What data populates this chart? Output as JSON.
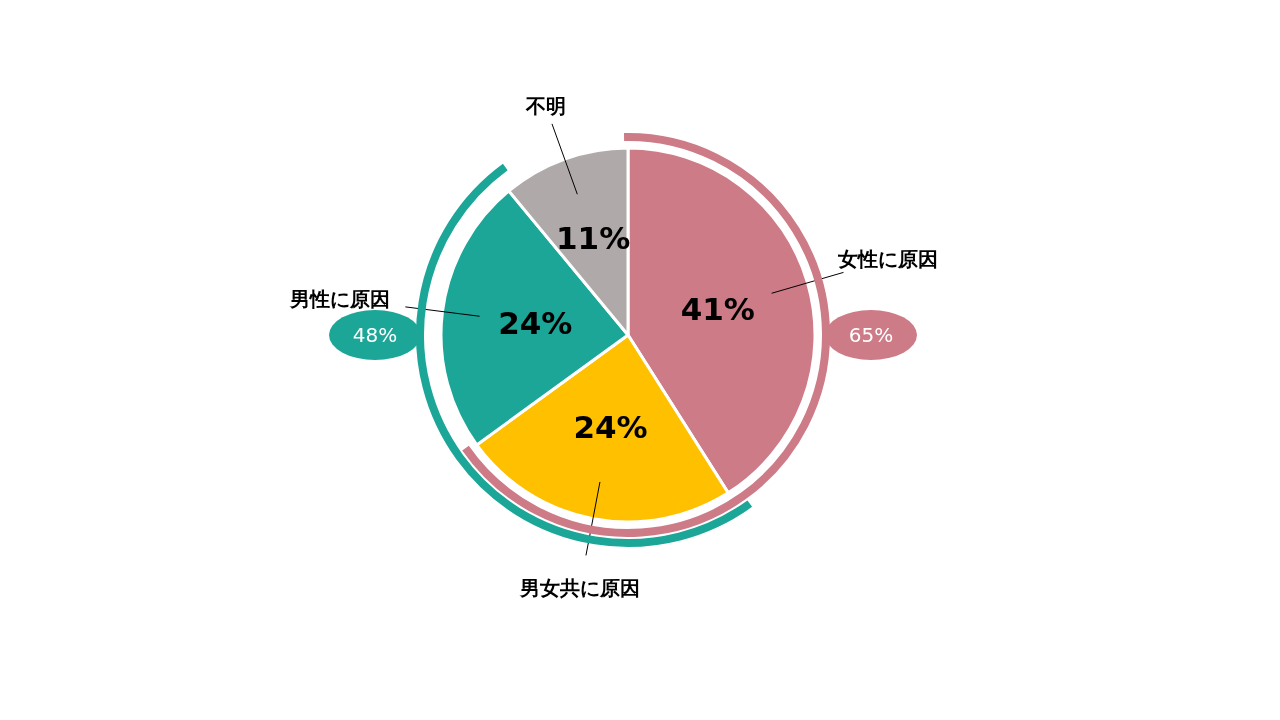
{
  "chart_data": {
    "type": "pie",
    "categories": [
      "女性に原因",
      "男女共に原因",
      "男性に原因",
      "不明"
    ],
    "values": [
      41,
      24,
      24,
      11
    ],
    "colors": [
      "#cd7b87",
      "#ffc000",
      "#1ba698",
      "#afaaa9"
    ],
    "value_labels": [
      "41%",
      "24%",
      "24%",
      "11%"
    ],
    "annotations": [
      "65%",
      "48%"
    ]
  }
}
